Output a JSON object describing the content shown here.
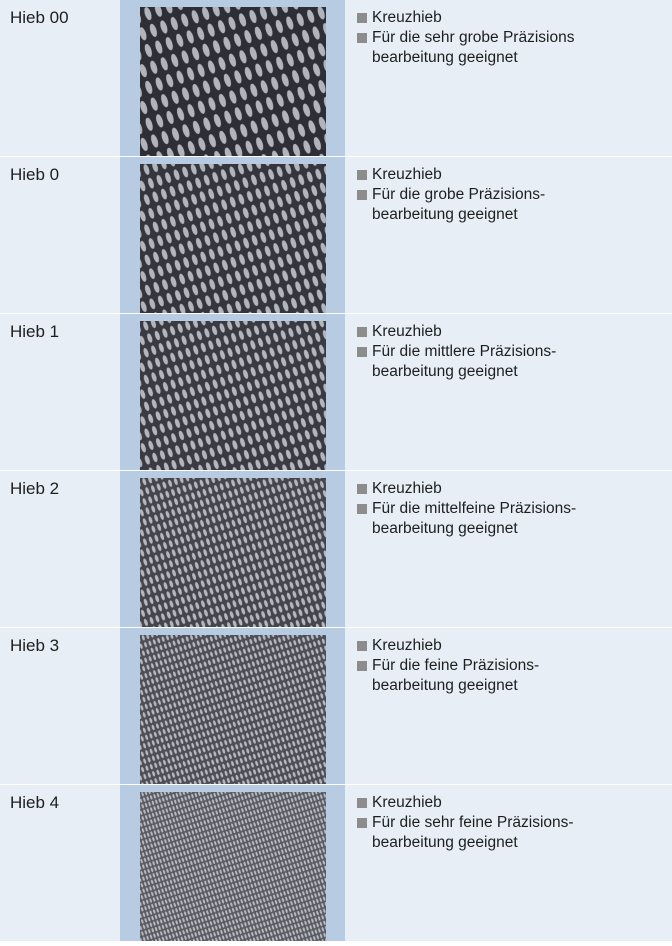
{
  "rows": [
    {
      "label": "Hieb 00",
      "bullets": [
        [
          "Kreuzhieb"
        ],
        [
          "Für die sehr grobe Präzisions",
          "bearbeitung geeignet"
        ]
      ]
    },
    {
      "label": "Hieb 0",
      "bullets": [
        [
          "Kreuzhieb"
        ],
        [
          "Für die grobe Präzisions-",
          "bearbeitung geeignet"
        ]
      ]
    },
    {
      "label": "Hieb 1",
      "bullets": [
        [
          "Kreuzhieb"
        ],
        [
          "Für die mittlere Präzisions-",
          "bearbeitung geeignet"
        ]
      ]
    },
    {
      "label": "Hieb 2",
      "bullets": [
        [
          "Kreuzhieb"
        ],
        [
          "Für die mittelfeine Präzisions-",
          "bearbeitung geeignet"
        ]
      ]
    },
    {
      "label": "Hieb 3",
      "bullets": [
        [
          "Kreuzhieb"
        ],
        [
          "Für die feine Präzisions-",
          "bearbeitung geeignet"
        ]
      ]
    },
    {
      "label": "Hieb 4",
      "bullets": [
        [
          "Kreuzhieb"
        ],
        [
          "Für die sehr feine Präzisions-",
          "bearbeitung geeignet"
        ]
      ]
    }
  ]
}
